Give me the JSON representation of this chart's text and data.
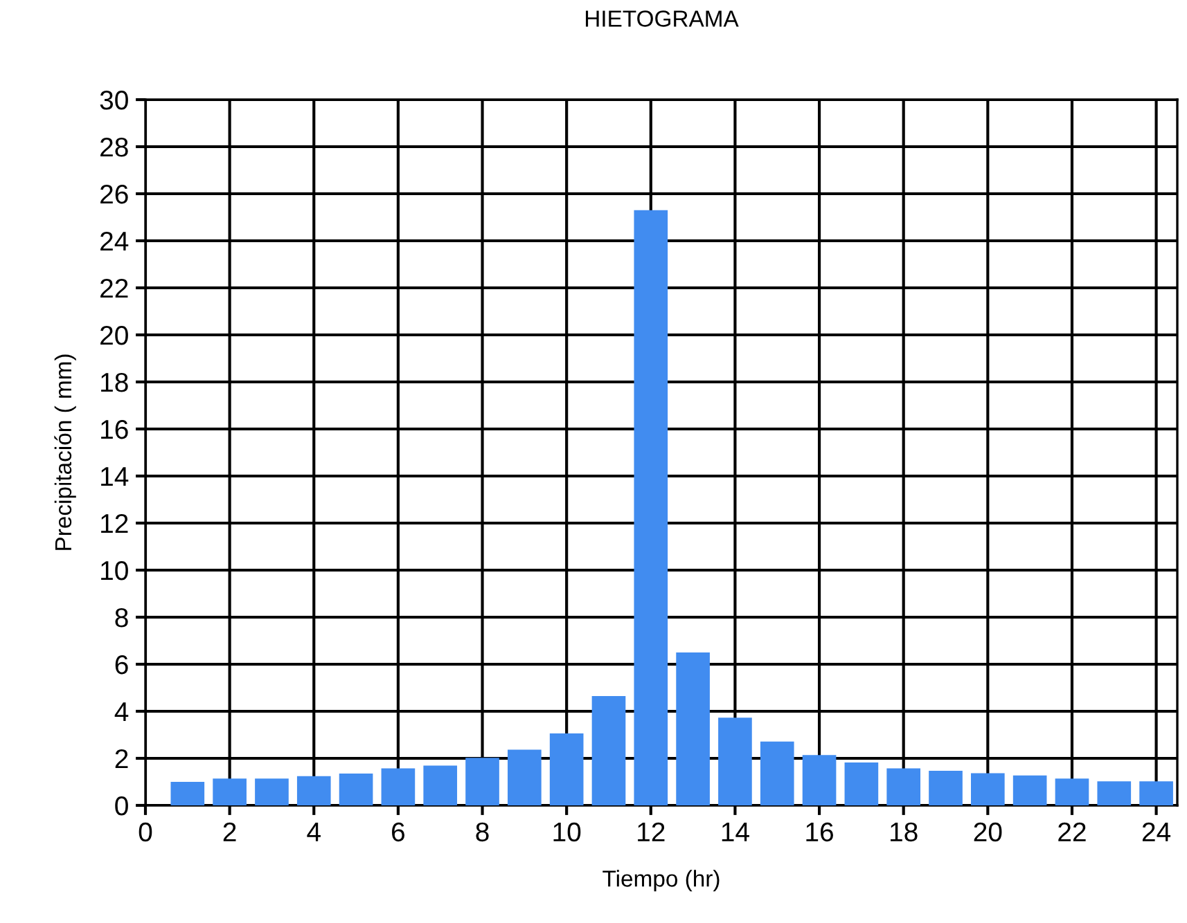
{
  "chart_data": {
    "type": "bar",
    "title": "HIETOGRAMA",
    "xlabel": "Tiempo (hr)",
    "ylabel": "Precipitación ( mm)",
    "x": [
      1,
      2,
      3,
      4,
      5,
      6,
      7,
      8,
      9,
      10,
      11,
      12,
      13,
      14,
      15,
      16,
      17,
      18,
      19,
      20,
      21,
      22,
      23,
      24
    ],
    "values": [
      1.0,
      1.14,
      1.14,
      1.24,
      1.35,
      1.57,
      1.69,
      2.02,
      2.37,
      3.06,
      4.65,
      25.3,
      6.5,
      3.73,
      2.71,
      2.14,
      1.82,
      1.57,
      1.47,
      1.37,
      1.27,
      1.14,
      1.02,
      1.02
    ],
    "color": "#418cf0",
    "xlim": [
      0,
      24.5
    ],
    "xticks": [
      0,
      2,
      4,
      6,
      8,
      10,
      12,
      14,
      16,
      18,
      20,
      22,
      24
    ],
    "ylim": [
      0,
      30
    ],
    "yticks": [
      0,
      2,
      4,
      6,
      8,
      10,
      12,
      14,
      16,
      18,
      20,
      22,
      24,
      26,
      28,
      30
    ],
    "grid": true,
    "legend": false
  }
}
